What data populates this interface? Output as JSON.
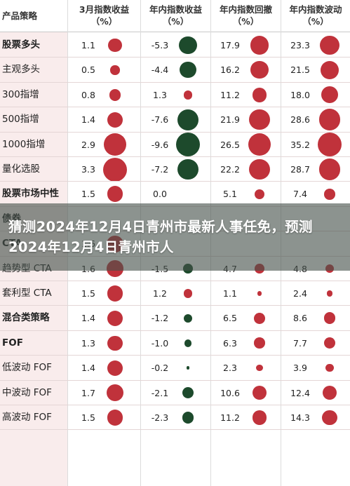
{
  "headers": [
    {
      "line1": "产品策略",
      "line2": ""
    },
    {
      "line1": "3月指数收益",
      "line2": "（%）"
    },
    {
      "line1": "年内指数收益",
      "line2": "（%）"
    },
    {
      "line1": "年内指数回撤",
      "line2": "（%）"
    },
    {
      "line1": "年内指数波动",
      "line2": "（%）"
    }
  ],
  "colors": {
    "positive": "#c0323b",
    "negative": "#1d4a2c",
    "shade": "#f9ecec"
  },
  "rows": [
    {
      "name": "股票多头",
      "bold": true,
      "m": "1.1",
      "ytd": "-5.3",
      "dd": "17.9",
      "vol": "23.3"
    },
    {
      "name": "主观多头",
      "bold": false,
      "m": "0.5",
      "ytd": "-4.4",
      "dd": "16.2",
      "vol": "21.5"
    },
    {
      "name": "300指增",
      "bold": false,
      "m": "0.8",
      "ytd": "1.3",
      "dd": "11.2",
      "vol": "18.0"
    },
    {
      "name": "500指增",
      "bold": false,
      "m": "1.4",
      "ytd": "-7.6",
      "dd": "21.9",
      "vol": "28.6"
    },
    {
      "name": "1000指增",
      "bold": false,
      "m": "2.9",
      "ytd": "-9.6",
      "dd": "26.5",
      "vol": "35.2"
    },
    {
      "name": "量化选股",
      "bold": false,
      "m": "3.3",
      "ytd": "-7.2",
      "dd": "22.2",
      "vol": "28.7"
    },
    {
      "name": "股票市场中性",
      "bold": true,
      "m": "1.5",
      "ytd": "0.0",
      "dd": "5.1",
      "vol": "7.4"
    },
    {
      "name": "债券",
      "bold": true,
      "m": "",
      "ytd": "",
      "dd": "",
      "vol": ""
    },
    {
      "name": "CTA",
      "bold": true,
      "m": "1.6",
      "ytd": "",
      "dd": "",
      "vol": ""
    },
    {
      "name": "趋势型 CTA",
      "bold": false,
      "m": "1.6",
      "ytd": "-1.5",
      "dd": "4.7",
      "vol": "4.8"
    },
    {
      "name": "套利型 CTA",
      "bold": false,
      "m": "1.5",
      "ytd": "1.2",
      "dd": "1.1",
      "vol": "2.4"
    },
    {
      "name": "混合类策略",
      "bold": true,
      "m": "1.4",
      "ytd": "-1.2",
      "dd": "6.5",
      "vol": "8.6"
    },
    {
      "name": "FOF",
      "bold": true,
      "m": "1.3",
      "ytd": "-1.0",
      "dd": "6.3",
      "vol": "7.7"
    },
    {
      "name": "低波动 FOF",
      "bold": false,
      "m": "1.4",
      "ytd": "-0.2",
      "dd": "2.3",
      "vol": "3.9"
    },
    {
      "name": "中波动 FOF",
      "bold": false,
      "m": "1.7",
      "ytd": "-2.1",
      "dd": "10.6",
      "vol": "12.4"
    },
    {
      "name": "高波动 FOF",
      "bold": false,
      "m": "1.5",
      "ytd": "-2.3",
      "dd": "11.2",
      "vol": "14.3"
    }
  ],
  "overlay": {
    "title": "猜测2024年12月4日青州市最新人事任免，预测2024年12月4日青州市人"
  }
}
